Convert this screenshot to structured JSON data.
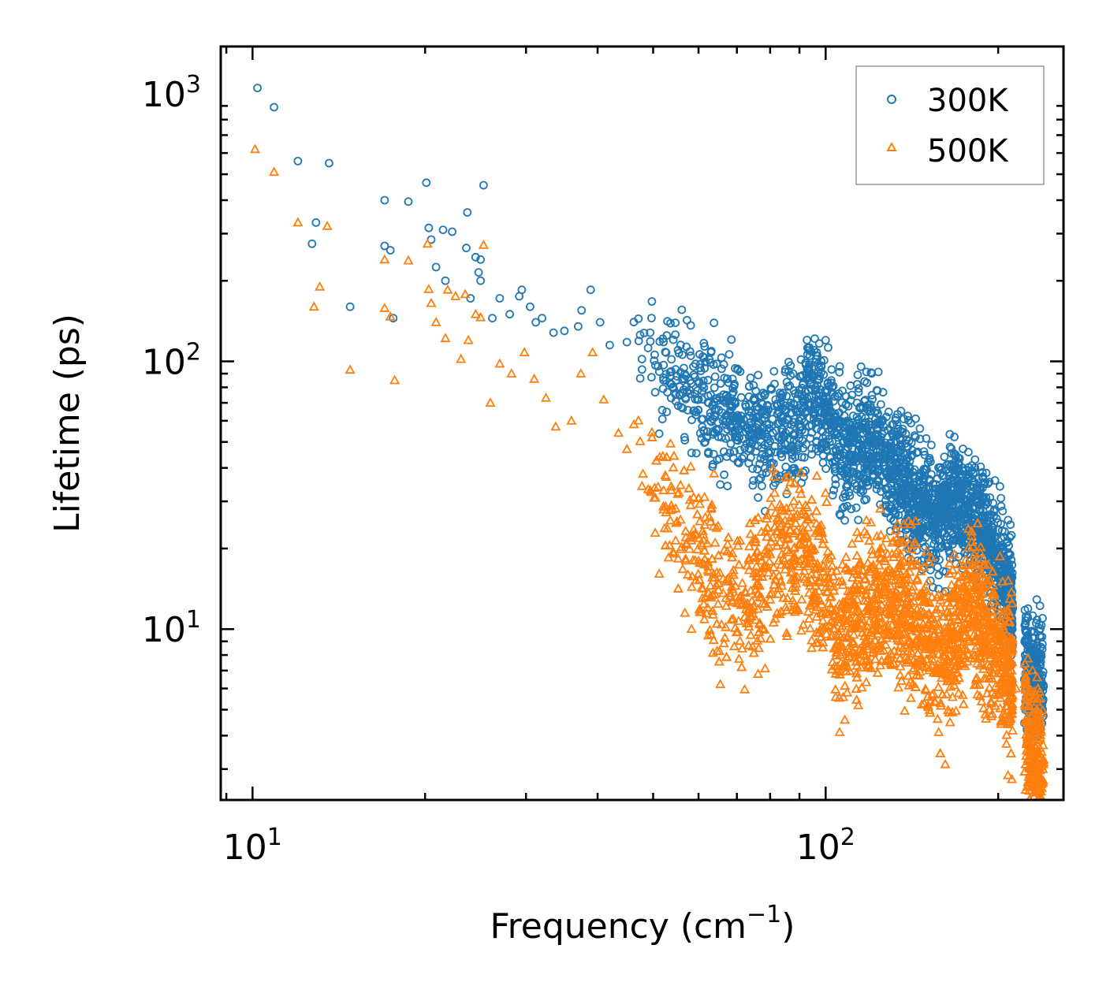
{
  "chart_data": {
    "type": "scatter",
    "title": "",
    "xlabel": "Frequency (cm",
    "xlabel_sup": "−1",
    "xlabel_close": ")",
    "ylabel": "Lifetime (ps)",
    "xscale": "log",
    "yscale": "log",
    "xlim": [
      8.8,
      260
    ],
    "ylim": [
      2.3,
      1500
    ],
    "x_ticks": [
      {
        "value": 10,
        "base": "10",
        "exp": "1"
      },
      {
        "value": 100,
        "base": "10",
        "exp": "2"
      }
    ],
    "y_ticks": [
      {
        "value": 10,
        "base": "10",
        "exp": "1"
      },
      {
        "value": 100,
        "base": "10",
        "exp": "2"
      },
      {
        "value": 1000,
        "base": "10",
        "exp": "3"
      }
    ],
    "legend_position": "top-right",
    "series": [
      {
        "name": "300K",
        "color": "#1f77b4",
        "marker": "circle",
        "points": [
          [
            10.2,
            1050
          ],
          [
            10.9,
            890
          ],
          [
            12.0,
            560
          ],
          [
            12.9,
            330
          ],
          [
            13.6,
            550
          ],
          [
            12.7,
            275
          ],
          [
            14.8,
            160
          ],
          [
            17.0,
            400
          ],
          [
            18.7,
            395
          ],
          [
            17.0,
            270
          ],
          [
            17.4,
            260
          ],
          [
            17.6,
            145
          ],
          [
            20.1,
            465
          ],
          [
            20.3,
            315
          ],
          [
            20.5,
            285
          ],
          [
            20.9,
            225
          ],
          [
            21.5,
            310
          ],
          [
            22.3,
            305
          ],
          [
            21.7,
            200
          ],
          [
            23.7,
            360
          ],
          [
            24.5,
            245
          ],
          [
            25.0,
            240
          ],
          [
            24.8,
            215
          ],
          [
            25.3,
            455
          ],
          [
            25.0,
            200
          ],
          [
            23.6,
            265
          ],
          [
            24.0,
            172
          ],
          [
            26.2,
            145
          ],
          [
            27.0,
            172
          ],
          [
            28.1,
            150
          ],
          [
            29.5,
            185
          ],
          [
            29.2,
            175
          ],
          [
            30.5,
            160
          ],
          [
            31.2,
            140
          ],
          [
            32.0,
            145
          ],
          [
            33.5,
            128
          ],
          [
            35.0,
            130
          ],
          [
            37.0,
            135
          ],
          [
            37.5,
            155
          ],
          [
            38.9,
            185
          ],
          [
            40.4,
            140
          ],
          [
            42.0,
            115
          ],
          [
            45.0,
            118
          ],
          [
            47.8,
            102
          ],
          [
            49.4,
            128
          ],
          [
            51.0,
            96
          ],
          [
            55.0,
            88
          ],
          [
            56.7,
            86
          ],
          [
            60.0,
            72
          ],
          [
            64.0,
            66
          ],
          [
            70.0,
            62
          ],
          [
            77.0,
            53
          ],
          [
            82.0,
            55
          ],
          [
            90.0,
            57
          ],
          [
            93.0,
            94
          ],
          [
            94.0,
            82
          ],
          [
            92.0,
            64
          ],
          [
            96.0,
            80
          ],
          [
            105.0,
            52
          ],
          [
            110.0,
            45
          ],
          [
            120.0,
            52
          ],
          [
            123.0,
            50
          ],
          [
            126.0,
            42
          ],
          [
            137.0,
            35
          ],
          [
            155.0,
            26
          ],
          [
            165.0,
            32
          ],
          [
            175.0,
            28
          ],
          [
            187.0,
            25
          ],
          [
            200.0,
            18
          ],
          [
            212.0,
            12
          ],
          [
            227.0,
            6.5
          ],
          [
            238.0,
            6.2
          ]
        ]
      },
      {
        "name": "500K",
        "color": "#ff7f0e",
        "marker": "triangle",
        "points": [
          [
            10.1,
            620
          ],
          [
            10.9,
            510
          ],
          [
            12.0,
            330
          ],
          [
            13.5,
            320
          ],
          [
            12.8,
            160
          ],
          [
            13.1,
            190
          ],
          [
            14.8,
            93
          ],
          [
            17.0,
            240
          ],
          [
            17.0,
            158
          ],
          [
            17.4,
            147
          ],
          [
            17.7,
            85
          ],
          [
            18.7,
            238
          ],
          [
            20.2,
            275
          ],
          [
            20.3,
            186
          ],
          [
            20.5,
            165
          ],
          [
            20.9,
            140
          ],
          [
            21.7,
            122
          ],
          [
            21.9,
            185
          ],
          [
            22.6,
            175
          ],
          [
            23.1,
            102
          ],
          [
            23.5,
            178
          ],
          [
            23.8,
            120
          ],
          [
            24.5,
            150
          ],
          [
            25.0,
            146
          ],
          [
            25.3,
            272
          ],
          [
            26.0,
            70
          ],
          [
            27.0,
            98
          ],
          [
            28.3,
            90
          ],
          [
            29.8,
            108
          ],
          [
            31.0,
            86
          ],
          [
            32.5,
            73
          ],
          [
            33.8,
            57
          ],
          [
            36.0,
            60
          ],
          [
            37.4,
            90
          ],
          [
            39.2,
            108
          ],
          [
            41.0,
            72
          ],
          [
            43.5,
            54
          ],
          [
            45.0,
            47
          ],
          [
            48.0,
            38
          ],
          [
            51.0,
            34
          ],
          [
            54.0,
            28
          ],
          [
            57.0,
            22
          ],
          [
            60.0,
            18
          ],
          [
            65.0,
            14
          ],
          [
            70.0,
            12.5
          ],
          [
            76.0,
            13.5
          ],
          [
            80.0,
            19
          ],
          [
            88.0,
            20
          ],
          [
            95.0,
            18
          ],
          [
            100.0,
            15
          ],
          [
            105.0,
            9
          ],
          [
            110.0,
            11
          ],
          [
            118.0,
            12
          ],
          [
            125.0,
            13
          ],
          [
            140.0,
            12
          ],
          [
            150.0,
            9
          ],
          [
            160.0,
            8
          ],
          [
            180.0,
            13
          ],
          [
            200.0,
            8
          ],
          [
            215.0,
            6
          ],
          [
            228.0,
            3.5
          ],
          [
            238.0,
            3.2
          ]
        ]
      }
    ]
  }
}
